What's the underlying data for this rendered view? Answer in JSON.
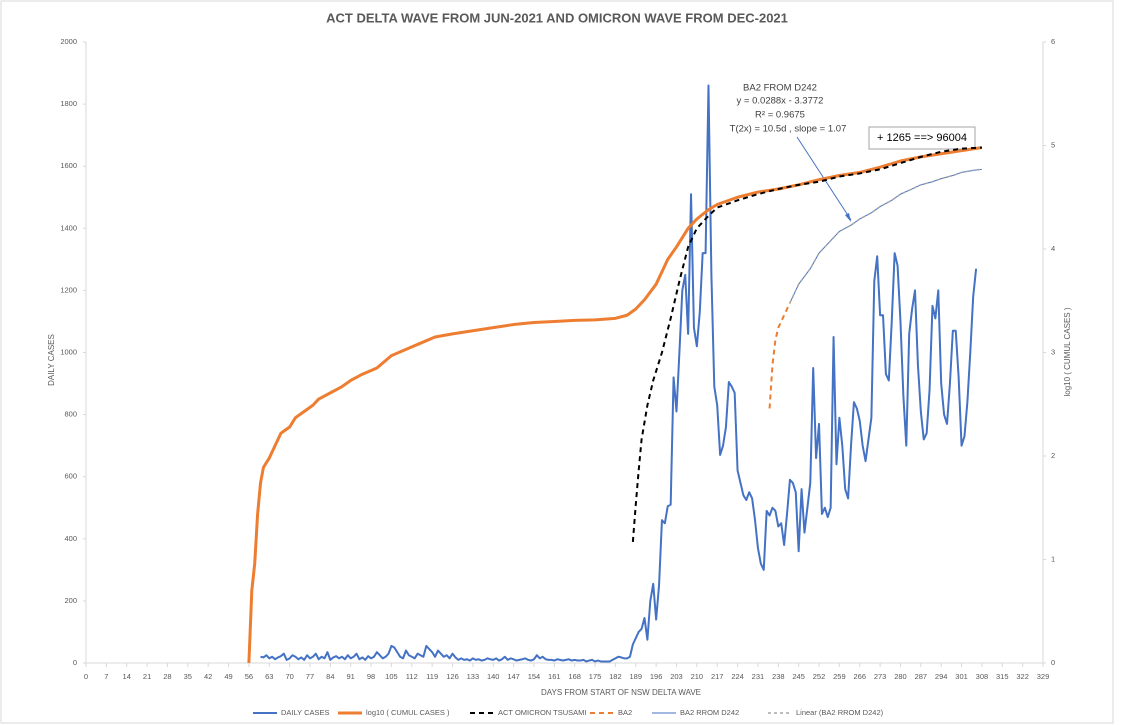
{
  "chart_data": {
    "type": "line",
    "title": "ACT  DELTA WAVE FROM JUN-2021 AND OMICRON WAVE FROM DEC-2021",
    "xlabel": "DAYS FROM START OF NSW DELTA WAVE",
    "ylabel": "DAILY CASES",
    "y2label": "log10 ( CUMUL CASES )",
    "xlim": [
      0,
      329
    ],
    "xticks": [
      0,
      7,
      14,
      21,
      28,
      35,
      42,
      49,
      56,
      63,
      70,
      77,
      84,
      91,
      98,
      105,
      112,
      119,
      126,
      133,
      140,
      147,
      154,
      161,
      168,
      175,
      182,
      189,
      196,
      203,
      210,
      217,
      224,
      231,
      238,
      245,
      252,
      259,
      266,
      273,
      280,
      287,
      294,
      301,
      308,
      315,
      322,
      329
    ],
    "ylim": [
      0,
      2000
    ],
    "yticks": [
      0,
      200,
      400,
      600,
      800,
      1000,
      1200,
      1400,
      1600,
      1800,
      2000
    ],
    "y2lim": [
      0,
      6
    ],
    "y2ticks": [
      0,
      1,
      2,
      3,
      4,
      5,
      6
    ],
    "grid": false,
    "legend": "bottom",
    "annotations": [
      {
        "lines": [
          "BA2 FROM D242",
          "y = 0.0288x - 3.3772",
          "R² = 0.9675",
          "T(2x) = 10.5d , slope =  1.07"
        ]
      },
      {
        "lines": [
          "+ 1265 ==> 96004"
        ]
      }
    ],
    "series": [
      {
        "name": "DAILY CASES",
        "color": "#4472c4",
        "width": 2,
        "dash": "none",
        "axis": "y",
        "x": [
          60,
          61,
          62,
          63,
          64,
          65,
          66,
          67,
          68,
          69,
          70,
          71,
          72,
          73,
          74,
          75,
          76,
          77,
          78,
          79,
          80,
          81,
          82,
          83,
          84,
          85,
          86,
          87,
          88,
          89,
          90,
          91,
          92,
          93,
          94,
          95,
          96,
          97,
          98,
          99,
          100,
          101,
          102,
          103,
          104,
          105,
          106,
          107,
          108,
          109,
          110,
          111,
          112,
          113,
          114,
          115,
          116,
          117,
          118,
          119,
          120,
          121,
          122,
          123,
          124,
          125,
          126,
          127,
          128,
          129,
          130,
          131,
          132,
          133,
          134,
          135,
          136,
          137,
          138,
          139,
          140,
          141,
          142,
          143,
          144,
          145,
          146,
          147,
          148,
          149,
          150,
          151,
          152,
          153,
          154,
          155,
          156,
          157,
          158,
          159,
          160,
          161,
          162,
          163,
          164,
          165,
          166,
          167,
          168,
          169,
          170,
          171,
          172,
          173,
          174,
          175,
          176,
          177,
          178,
          179,
          180,
          181,
          182,
          183,
          184,
          185,
          186,
          187,
          188,
          189,
          190,
          191,
          192,
          193,
          194,
          195,
          196,
          197,
          198,
          199,
          200,
          201,
          202,
          203,
          204,
          205,
          206,
          207,
          208,
          209,
          210,
          211,
          212,
          213,
          214,
          215,
          216,
          217,
          218,
          219,
          220,
          221,
          222,
          223,
          224,
          225,
          226,
          227,
          228,
          229,
          230,
          231,
          232,
          233,
          234,
          235,
          236,
          237,
          238,
          239,
          240,
          241,
          242,
          243,
          244,
          245,
          246,
          247,
          248,
          249,
          250,
          251,
          252,
          253,
          254,
          255,
          256,
          257,
          258,
          259,
          260,
          261,
          262,
          263,
          264,
          265,
          266,
          267,
          268,
          269,
          270,
          271,
          272,
          273,
          274,
          275,
          276,
          277,
          278,
          279,
          280,
          281,
          282,
          283,
          284,
          285,
          286,
          287,
          288,
          289,
          290,
          291,
          292,
          293,
          294,
          295,
          296,
          297,
          298,
          299,
          300,
          301,
          302,
          303,
          304,
          305,
          306
        ],
        "values": [
          20,
          18,
          25,
          15,
          20,
          12,
          18,
          22,
          30,
          10,
          15,
          25,
          20,
          12,
          18,
          10,
          25,
          15,
          20,
          30,
          12,
          20,
          15,
          35,
          10,
          18,
          22,
          15,
          20,
          12,
          25,
          15,
          20,
          30,
          12,
          18,
          10,
          22,
          15,
          20,
          35,
          25,
          15,
          20,
          30,
          55,
          50,
          35,
          20,
          15,
          40,
          25,
          20,
          15,
          30,
          25,
          20,
          55,
          45,
          35,
          20,
          40,
          30,
          20,
          25,
          15,
          30,
          18,
          10,
          15,
          10,
          12,
          8,
          15,
          10,
          12,
          8,
          10,
          15,
          12,
          10,
          15,
          8,
          12,
          20,
          10,
          15,
          12,
          8,
          10,
          12,
          15,
          10,
          8,
          12,
          25,
          15,
          20,
          12,
          10,
          10,
          8,
          12,
          10,
          8,
          10,
          12,
          8,
          10,
          8,
          8,
          10,
          5,
          8,
          10,
          5,
          8,
          5,
          5,
          5,
          5,
          10,
          15,
          20,
          18,
          15,
          15,
          20,
          60,
          80,
          100,
          110,
          145,
          75,
          200,
          255,
          140,
          250,
          460,
          450,
          505,
          510,
          920,
          810,
          1000,
          1200,
          1250,
          1060,
          1510,
          1080,
          1020,
          1130,
          1320,
          1320,
          1860,
          1250,
          890,
          830,
          670,
          700,
          760,
          905,
          890,
          870,
          620,
          580,
          540,
          525,
          550,
          530,
          460,
          370,
          320,
          300,
          490,
          475,
          500,
          490,
          440,
          450,
          380,
          480,
          590,
          580,
          550,
          360,
          560,
          420,
          500,
          580,
          950,
          660,
          770,
          480,
          500,
          470,
          500,
          1050,
          640,
          790,
          700,
          560,
          530,
          700,
          840,
          820,
          780,
          700,
          650,
          720,
          790,
          1230,
          1310,
          1120,
          1120,
          930,
          910,
          1100,
          1320,
          1280,
          1100,
          860,
          700,
          1060,
          1140,
          1200,
          960,
          810,
          720,
          740,
          880,
          1150,
          1110,
          1200,
          900,
          800,
          770,
          900,
          1070,
          1070,
          920,
          700,
          730,
          840,
          1000,
          1180,
          1270
        ]
      },
      {
        "name": "log10 ( CUMUL CASES )",
        "color": "#ed7d31",
        "width": 3,
        "dash": "none",
        "axis": "y2",
        "x": [
          56,
          57,
          58,
          59,
          60,
          61,
          63,
          65,
          67,
          70,
          72,
          75,
          78,
          80,
          84,
          88,
          91,
          95,
          100,
          105,
          110,
          115,
          120,
          126,
          133,
          140,
          147,
          154,
          161,
          168,
          175,
          182,
          186,
          189,
          192,
          196,
          200,
          203,
          207,
          210,
          214,
          217,
          224,
          231,
          238,
          245,
          252,
          259,
          266,
          273,
          280,
          287,
          294,
          301,
          308
        ],
        "values": [
          0,
          0.7,
          0.96,
          1.44,
          1.74,
          1.89,
          1.98,
          2.1,
          2.22,
          2.28,
          2.37,
          2.43,
          2.49,
          2.55,
          2.61,
          2.67,
          2.73,
          2.79,
          2.85,
          2.97,
          3.03,
          3.09,
          3.15,
          3.18,
          3.21,
          3.24,
          3.27,
          3.29,
          3.3,
          3.31,
          3.315,
          3.33,
          3.36,
          3.42,
          3.51,
          3.66,
          3.9,
          4.02,
          4.2,
          4.29,
          4.38,
          4.43,
          4.5,
          4.55,
          4.58,
          4.62,
          4.67,
          4.71,
          4.74,
          4.79,
          4.85,
          4.89,
          4.92,
          4.95,
          4.98
        ]
      },
      {
        "name": "ACT OMICRON TSUSAMI",
        "color": "#000000",
        "width": 2,
        "dash": "5 4",
        "axis": "y2",
        "x": [
          188,
          189,
          190,
          191,
          193,
          195,
          198,
          201,
          204,
          207,
          210,
          214,
          217,
          224,
          231,
          238,
          245,
          252,
          259,
          266,
          273,
          280,
          287,
          294,
          301,
          308
        ],
        "values": [
          1.17,
          1.53,
          1.86,
          2.16,
          2.49,
          2.73,
          3.0,
          3.33,
          3.69,
          4.02,
          4.2,
          4.32,
          4.4,
          4.47,
          4.53,
          4.58,
          4.62,
          4.65,
          4.7,
          4.73,
          4.77,
          4.83,
          4.89,
          4.94,
          4.97,
          4.98
        ]
      },
      {
        "name": "BA2",
        "color": "#ed7d31",
        "width": 2,
        "dash": "5 4",
        "axis": "y2",
        "x": [
          235,
          236,
          237,
          238,
          240,
          242
        ],
        "values": [
          2.46,
          2.88,
          3.12,
          3.24,
          3.36,
          3.48
        ]
      },
      {
        "name": "BA2 RROM D242",
        "color": "#4472c4",
        "width": 1,
        "dash": "none",
        "axis": "y2",
        "x": [
          242,
          245,
          249,
          252,
          256,
          259,
          263,
          266,
          270,
          273,
          277,
          280,
          284,
          287,
          291,
          294,
          298,
          301,
          305,
          308
        ],
        "values": [
          3.48,
          3.66,
          3.81,
          3.96,
          4.08,
          4.17,
          4.23,
          4.29,
          4.35,
          4.41,
          4.47,
          4.53,
          4.58,
          4.62,
          4.65,
          4.68,
          4.71,
          4.74,
          4.76,
          4.77
        ]
      },
      {
        "name": "Linear (BA2 RROM D242)",
        "color": "#a5a5a5",
        "width": 1.5,
        "dash": "3 3",
        "axis": "y2",
        "x": [
          242,
          245,
          249,
          252,
          256,
          259,
          263,
          266,
          270,
          273,
          277,
          280,
          284,
          287,
          291,
          294,
          298,
          301,
          305,
          308
        ],
        "values": [
          3.48,
          3.66,
          3.81,
          3.96,
          4.08,
          4.17,
          4.23,
          4.29,
          4.35,
          4.41,
          4.47,
          4.53,
          4.58,
          4.62,
          4.65,
          4.68,
          4.71,
          4.74,
          4.76,
          4.77
        ]
      }
    ]
  }
}
